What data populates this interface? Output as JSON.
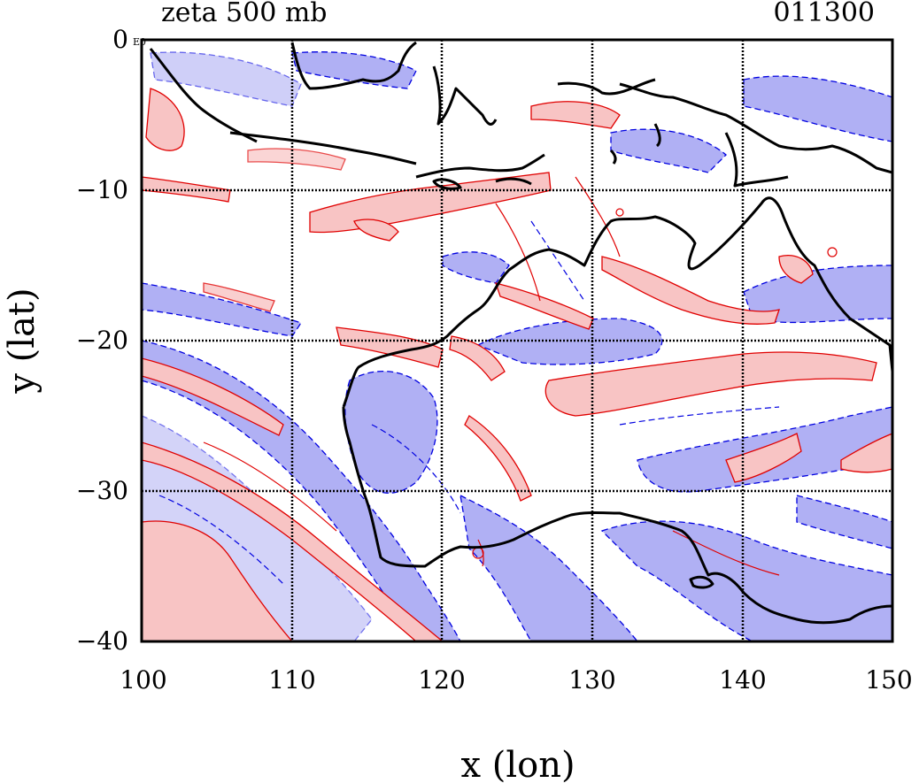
{
  "header": {
    "title": "zeta 500 mb",
    "date": "011300"
  },
  "map": {
    "x_range": [
      100,
      150
    ],
    "y_range": [
      -40,
      0
    ],
    "x_ticks": [
      "100",
      "110",
      "120",
      "130",
      "140",
      "150"
    ],
    "y_ticks": [
      "0",
      "−10",
      "−20",
      "−30",
      "−40"
    ],
    "exponent_label": "E0",
    "grid": true
  },
  "axes": {
    "xlabel": "x (lon)",
    "ylabel": "y (lat)"
  },
  "colors": {
    "positive_fill": "#f8c4c4",
    "positive_line": "#e00000",
    "negative_fill": "#b0b0f4",
    "negative_line": "#0000e0",
    "coast": "#000000",
    "grid": "#000000"
  }
}
